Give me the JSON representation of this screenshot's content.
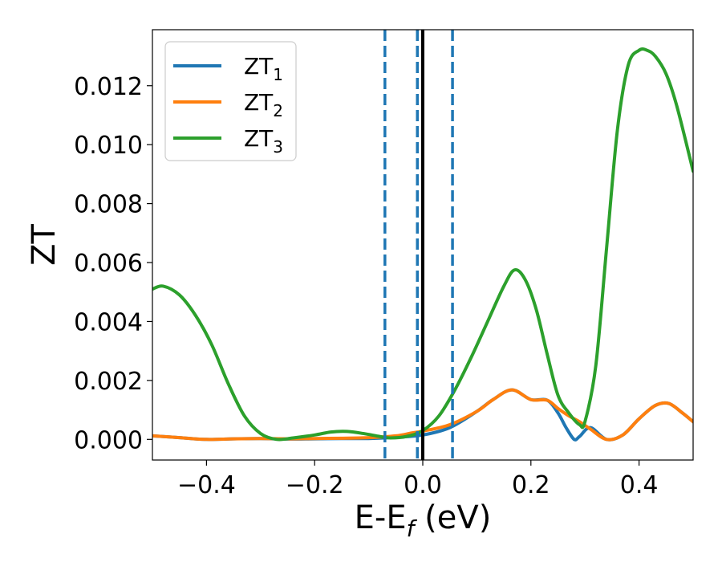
{
  "chart_data": {
    "type": "line",
    "title": "",
    "xlabel": "E-E",
    "xlabel_sub": "f",
    "xlabel_unit": " (eV)",
    "ylabel": "ZT",
    "xlim": [
      -0.5,
      0.5
    ],
    "ylim": [
      -0.0007,
      0.0139
    ],
    "xticks": [
      -0.4,
      -0.2,
      0.0,
      0.2,
      0.4
    ],
    "xtick_labels": [
      "−0.4",
      "−0.2",
      "0.0",
      "0.2",
      "0.4"
    ],
    "yticks": [
      0.0,
      0.002,
      0.004,
      0.006,
      0.008,
      0.01,
      0.012
    ],
    "ytick_labels": [
      "0.000",
      "0.002",
      "0.004",
      "0.006",
      "0.008",
      "0.010",
      "0.012"
    ],
    "grid": false,
    "legend_position": "top-left",
    "vertical_lines": [
      {
        "x": -0.07,
        "style": "dashed",
        "color": "#1f77b4"
      },
      {
        "x": -0.01,
        "style": "dashed",
        "color": "#1f77b4"
      },
      {
        "x": 0.055,
        "style": "dashed",
        "color": "#1f77b4"
      },
      {
        "x": 0.0,
        "style": "solid",
        "color": "#000000"
      }
    ],
    "series": [
      {
        "name": "ZT",
        "name_sub": "1",
        "color": "#1f77b4",
        "x": [
          -0.5,
          -0.45,
          -0.4,
          -0.35,
          -0.3,
          -0.25,
          -0.2,
          -0.15,
          -0.1,
          -0.05,
          0.0,
          0.05,
          0.1,
          0.13,
          0.165,
          0.2,
          0.23,
          0.25,
          0.265,
          0.28,
          0.29,
          0.31,
          0.34,
          0.37,
          0.4,
          0.43,
          0.455,
          0.48,
          0.5
        ],
        "y": [
          0.00012,
          6e-05,
          0.0,
          2e-05,
          3e-05,
          1e-05,
          2e-05,
          3e-05,
          3e-05,
          7e-05,
          0.00015,
          0.0004,
          0.00095,
          0.00135,
          0.00168,
          0.00135,
          0.00133,
          0.0009,
          0.0004,
          0.0,
          0.0001,
          0.0004,
          0.0,
          0.00015,
          0.0007,
          0.00115,
          0.00122,
          0.0009,
          0.0006
        ]
      },
      {
        "name": "ZT",
        "name_sub": "2",
        "color": "#ff7f0e",
        "x": [
          -0.5,
          -0.45,
          -0.4,
          -0.35,
          -0.3,
          -0.25,
          -0.2,
          -0.15,
          -0.1,
          -0.05,
          -0.02,
          0.0,
          0.05,
          0.1,
          0.13,
          0.165,
          0.2,
          0.23,
          0.25,
          0.27,
          0.29,
          0.31,
          0.34,
          0.37,
          0.4,
          0.43,
          0.455,
          0.48,
          0.5
        ],
        "y": [
          0.00012,
          6e-05,
          0.0,
          2e-05,
          3e-05,
          2e-05,
          3e-05,
          4e-05,
          6e-05,
          0.00012,
          0.00022,
          0.00028,
          0.0005,
          0.00095,
          0.00135,
          0.00168,
          0.00135,
          0.00133,
          0.00105,
          0.0008,
          0.0006,
          0.00035,
          0.0,
          0.00015,
          0.0007,
          0.00115,
          0.00122,
          0.0009,
          0.0006
        ]
      },
      {
        "name": "ZT",
        "name_sub": "3",
        "color": "#2ca02c",
        "x": [
          -0.5,
          -0.48,
          -0.45,
          -0.42,
          -0.39,
          -0.36,
          -0.33,
          -0.3,
          -0.27,
          -0.24,
          -0.2,
          -0.17,
          -0.14,
          -0.11,
          -0.08,
          -0.06,
          -0.03,
          0.0,
          0.03,
          0.06,
          0.09,
          0.12,
          0.15,
          0.17,
          0.19,
          0.21,
          0.23,
          0.25,
          0.27,
          0.29,
          0.3,
          0.32,
          0.34,
          0.36,
          0.38,
          0.4,
          0.415,
          0.43,
          0.45,
          0.47,
          0.5
        ],
        "y": [
          0.0051,
          0.0052,
          0.0049,
          0.0042,
          0.0032,
          0.0019,
          0.0008,
          0.0002,
          0.0,
          5e-05,
          0.00015,
          0.00025,
          0.00027,
          0.0002,
          0.0001,
          5e-05,
          0.0001,
          0.0003,
          0.0008,
          0.0017,
          0.0028,
          0.004,
          0.0052,
          0.00575,
          0.0054,
          0.0044,
          0.0029,
          0.0015,
          0.0009,
          0.0005,
          0.0006,
          0.0025,
          0.0065,
          0.0105,
          0.0127,
          0.0132,
          0.0132,
          0.013,
          0.0124,
          0.0113,
          0.0091
        ]
      }
    ]
  }
}
